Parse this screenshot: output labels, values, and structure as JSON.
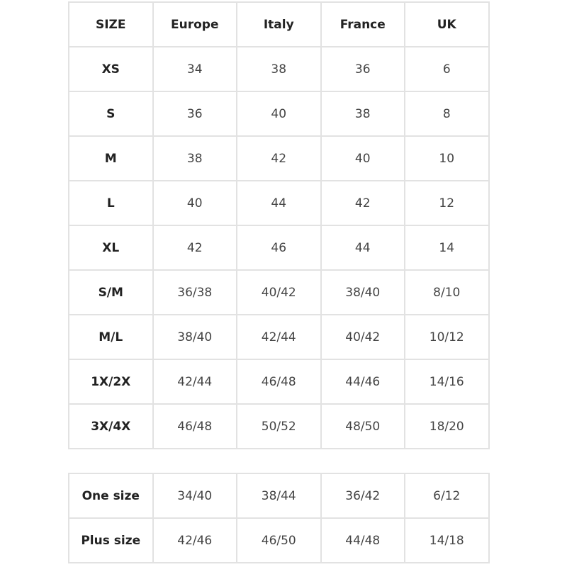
{
  "main_table": {
    "headers": [
      "SIZE",
      "Europe",
      "Italy",
      "France",
      "UK"
    ],
    "rows": [
      [
        "XS",
        "34",
        "38",
        "36",
        "6"
      ],
      [
        "S",
        "36",
        "40",
        "38",
        "8"
      ],
      [
        "M",
        "38",
        "42",
        "40",
        "10"
      ],
      [
        "L",
        "40",
        "44",
        "42",
        "12"
      ],
      [
        "XL",
        "42",
        "46",
        "44",
        "14"
      ],
      [
        "S/M",
        "36/38",
        "40/42",
        "38/40",
        "8/10"
      ],
      [
        "M/L",
        "38/40",
        "42/44",
        "40/42",
        "10/12"
      ],
      [
        "1X/2X",
        "42/44",
        "46/48",
        "44/46",
        "14/16"
      ],
      [
        "3X/4X",
        "46/48",
        "50/52",
        "48/50",
        "18/20"
      ]
    ]
  },
  "extra_table": {
    "rows": [
      [
        "One size",
        "34/40",
        "38/44",
        "36/42",
        "6/12"
      ],
      [
        "Plus size",
        "42/46",
        "46/50",
        "44/48",
        "14/18"
      ]
    ]
  }
}
